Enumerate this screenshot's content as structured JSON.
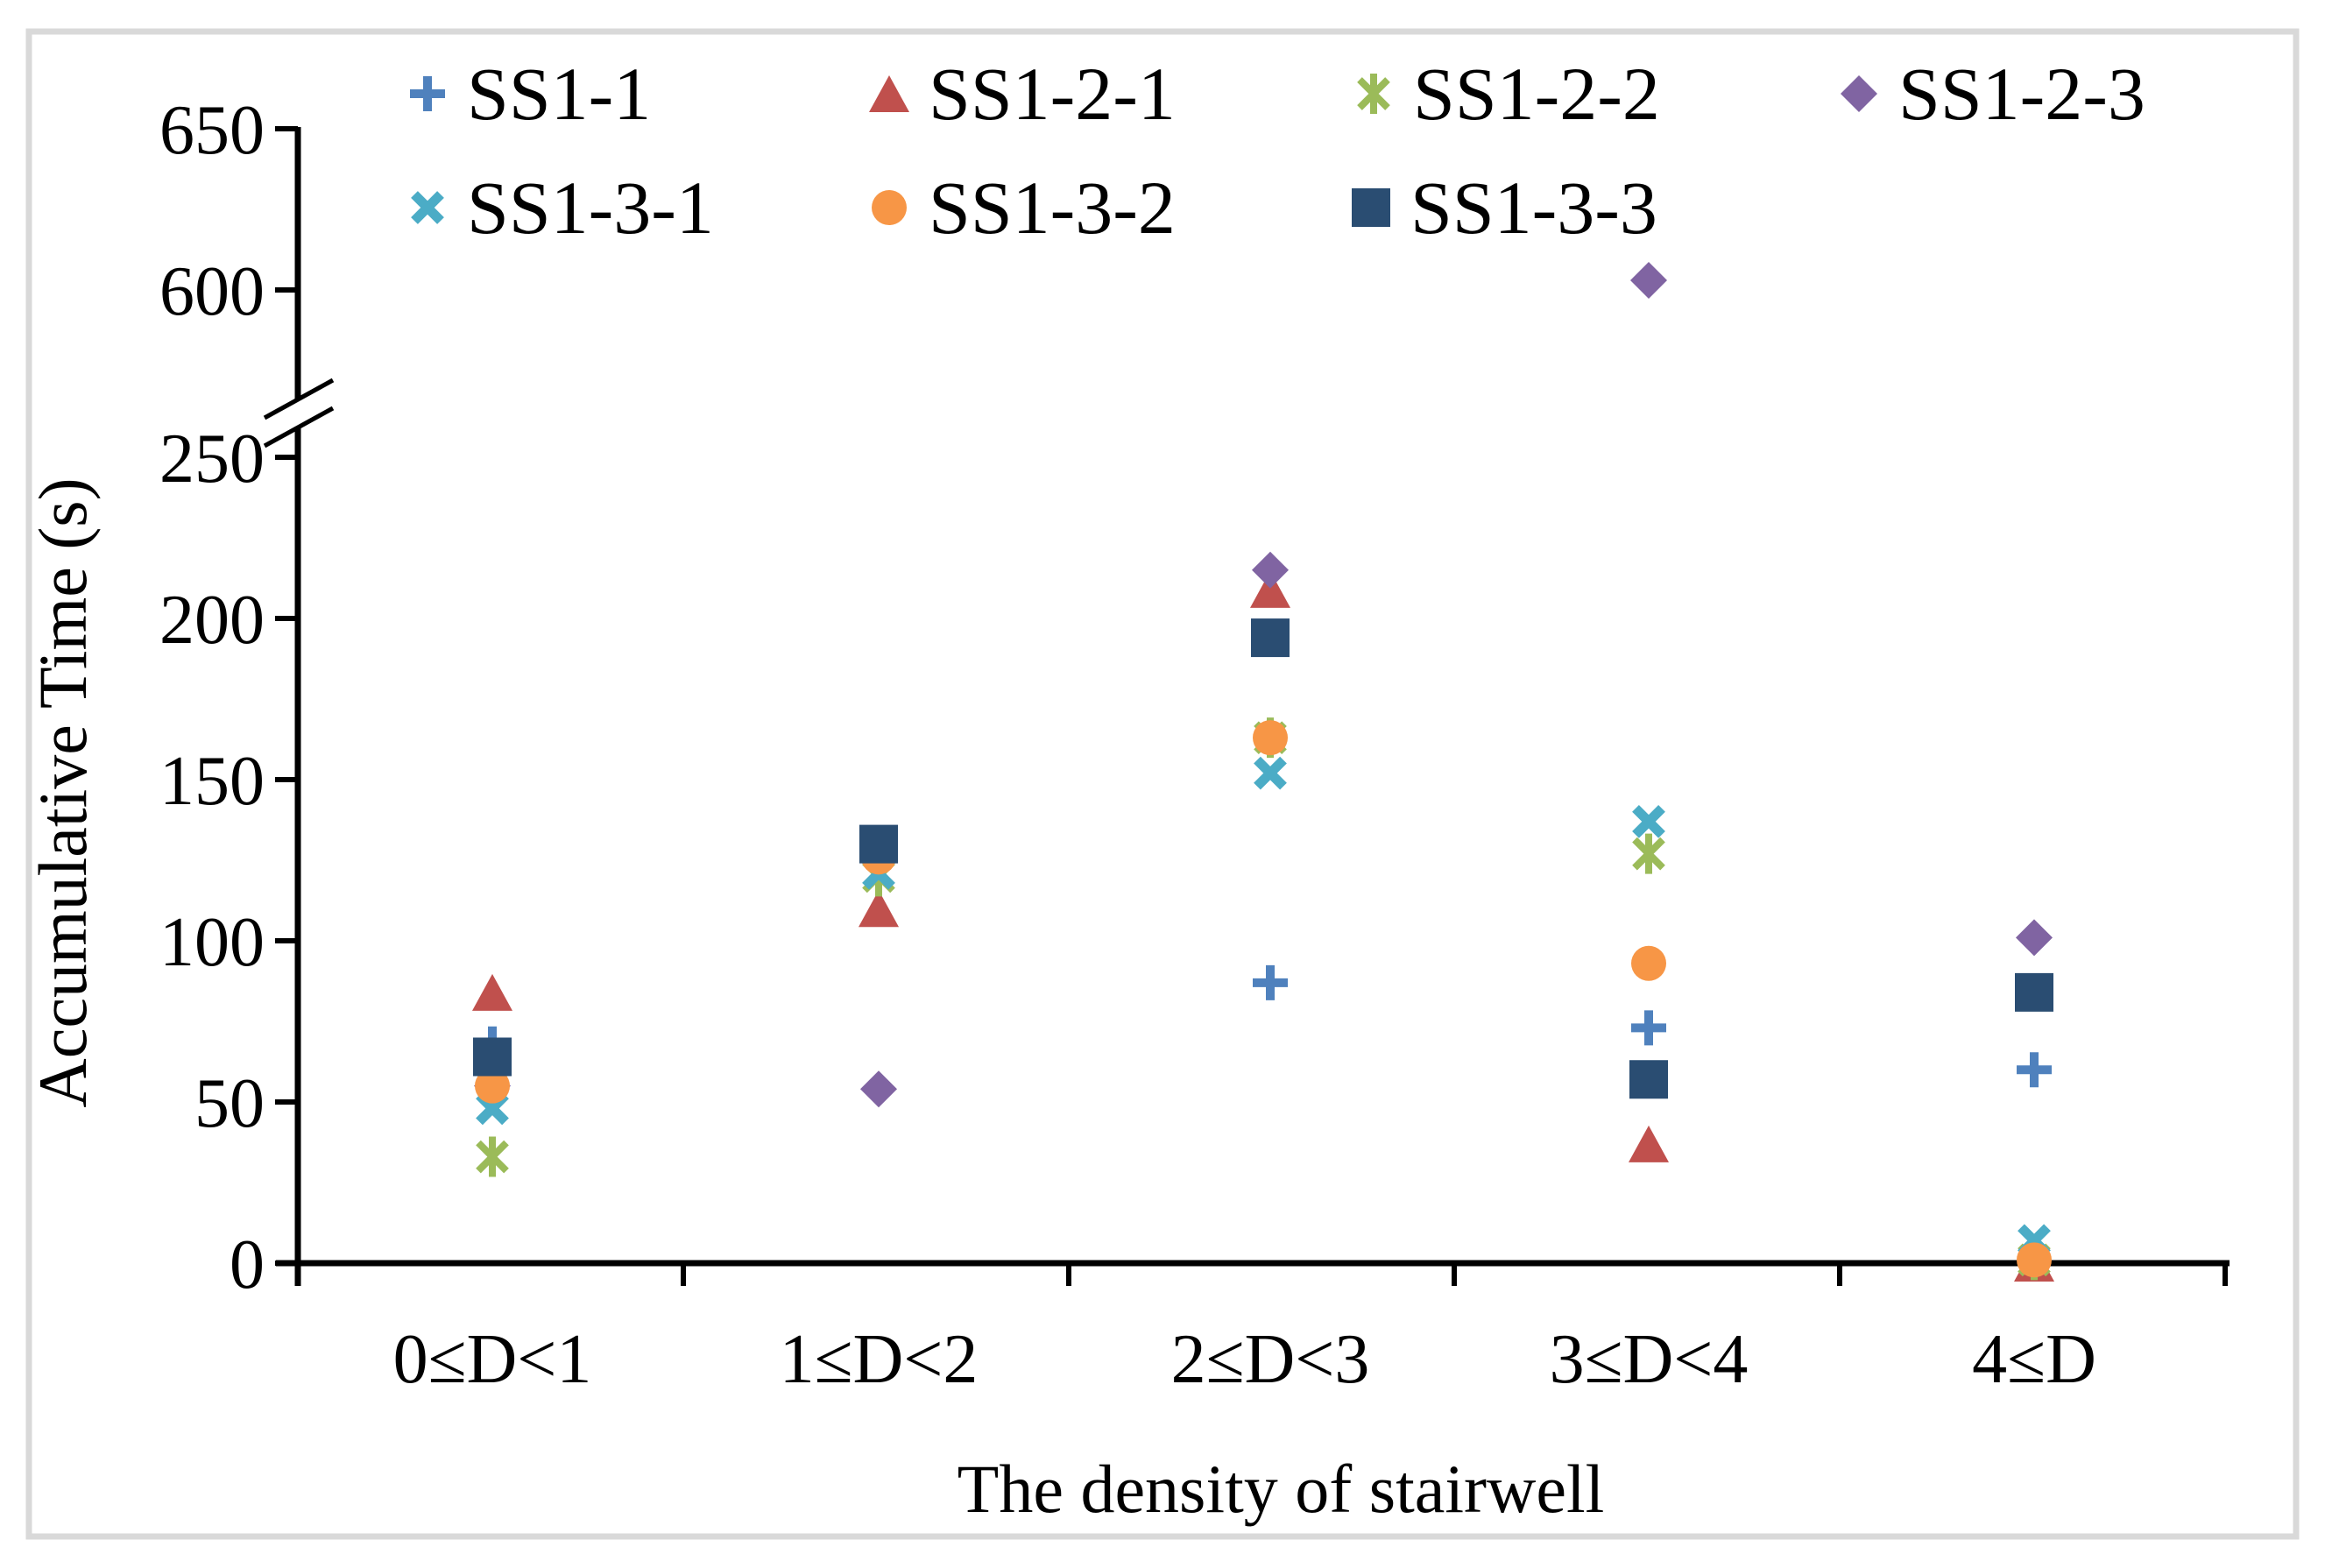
{
  "figure": {
    "background": "#FFFFFF",
    "border_color": "#D9D9D9"
  },
  "chart_data": {
    "type": "scatter",
    "title": "",
    "xlabel": "The density of stairwell",
    "ylabel": "Accumulative Time (s)",
    "categories": [
      "0≤D<1",
      "1≤D<2",
      "2≤D<3",
      "3≤D<4",
      "4≤D"
    ],
    "series": [
      {
        "name": "SS1-1",
        "marker": "plus",
        "color": "#4F81BD",
        "values": [
          68,
          130,
          87,
          73,
          60
        ]
      },
      {
        "name": "SS1-2-1",
        "marker": "triangle",
        "color": "#C0504D",
        "values": [
          84,
          110,
          209,
          37,
          0
        ]
      },
      {
        "name": "SS1-2-2",
        "marker": "asterisk",
        "color": "#9BBB59",
        "values": [
          33,
          120,
          163,
          127,
          1
        ]
      },
      {
        "name": "SS1-2-3",
        "marker": "diamond",
        "color": "#8064A2",
        "values": [
          55,
          54,
          215,
          603,
          101
        ]
      },
      {
        "name": "SS1-3-1",
        "marker": "x",
        "color": "#4BACC6",
        "values": [
          48,
          121,
          152,
          137,
          7
        ]
      },
      {
        "name": "SS1-3-2",
        "marker": "circle",
        "color": "#F79646",
        "values": [
          55,
          126,
          163,
          93,
          1
        ]
      },
      {
        "name": "SS1-3-3",
        "marker": "square",
        "color": "#2A4D72",
        "values": [
          64,
          130,
          194,
          57,
          84
        ]
      }
    ],
    "y_axis": {
      "ticks_lower": [
        0,
        50,
        100,
        150,
        200,
        250
      ],
      "ticks_upper": [
        600,
        650
      ],
      "axis_break": true,
      "break_between": [
        250,
        600
      ]
    },
    "x_axis": {
      "tick_style": "category-boundaries"
    },
    "legend_position": "top",
    "legend_rows": [
      [
        0,
        1,
        2,
        3
      ],
      [
        4,
        5,
        6
      ]
    ],
    "grid": false
  }
}
